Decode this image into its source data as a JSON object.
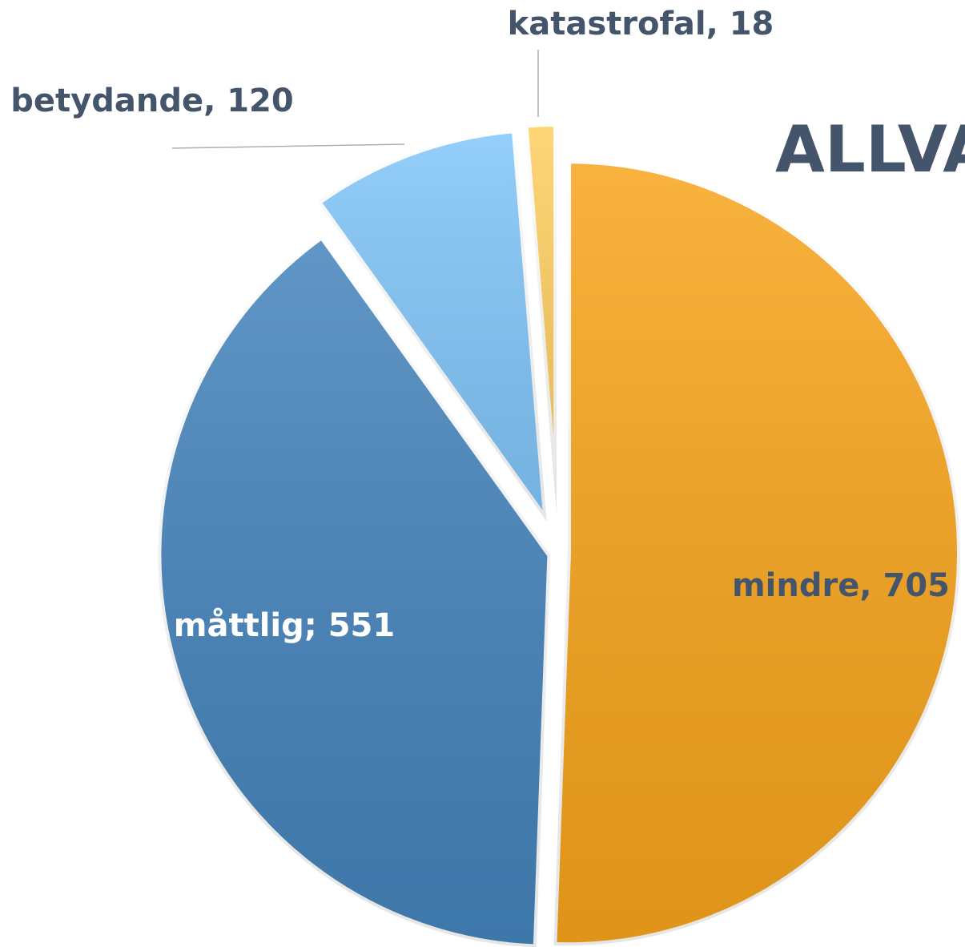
{
  "chart_data": {
    "type": "pie",
    "title": "ALLVA",
    "values": [
      705,
      551,
      120,
      18
    ],
    "value_labels": [
      "mindre, 705",
      "måttlig; 551",
      "betydande, 120",
      "katastrofal, 18"
    ],
    "colors": [
      "#F8A51C",
      "#4584BC",
      "#82C6FA",
      "#FFCF60"
    ]
  }
}
